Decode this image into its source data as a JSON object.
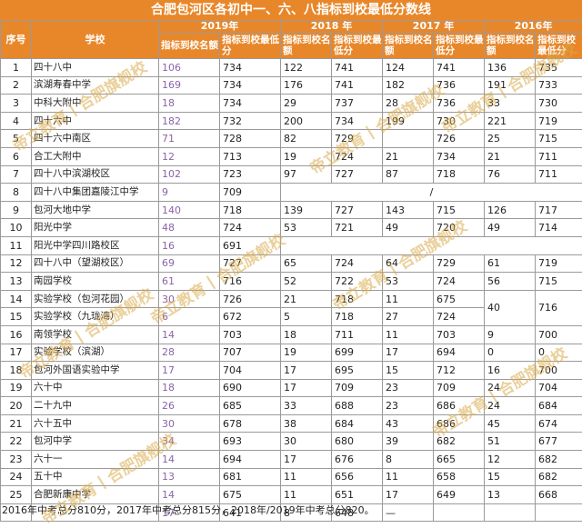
{
  "title": "合肥包河区各初中一、六、八指标到校最低分数线",
  "headers": {
    "no": "序号",
    "school": "学校",
    "years": [
      "2019年",
      "2018 年",
      "2017 年",
      "2016年"
    ],
    "quota": "指标到校名额",
    "min_score_2019": "指标到校最低分",
    "quota_short": "指标到校名额",
    "min_score": "指标到校最低分"
  },
  "rows": [
    {
      "no": "1",
      "school": "四十八中",
      "y2019": [
        "106",
        "734"
      ],
      "y2018": [
        "122",
        "741"
      ],
      "y2017": [
        "124",
        "741"
      ],
      "y2016": [
        "136",
        "735"
      ]
    },
    {
      "no": "2",
      "school": "滨湖寿春中学",
      "y2019": [
        "169",
        "734"
      ],
      "y2018": [
        "176",
        "741"
      ],
      "y2017": [
        "182",
        "736"
      ],
      "y2016": [
        "191",
        "733"
      ]
    },
    {
      "no": "3",
      "school": "中科大附中",
      "y2019": [
        "18",
        "734"
      ],
      "y2018": [
        "29",
        "737"
      ],
      "y2017": [
        "28",
        "736"
      ],
      "y2016": [
        "33",
        "730"
      ]
    },
    {
      "no": "4",
      "school": "四十六中",
      "y2019": [
        "182",
        "732"
      ],
      "y2018": [
        "200",
        "734"
      ],
      "y2017": [
        "199",
        "730"
      ],
      "y2016": [
        "221",
        "719"
      ]
    },
    {
      "no": "5",
      "school": "四十六中南区",
      "y2019": [
        "71",
        "728"
      ],
      "y2018": [
        "82",
        "729"
      ],
      "y2017": [
        "",
        "726"
      ],
      "y2016": [
        "25",
        "715"
      ]
    },
    {
      "no": "6",
      "school": "合工大附中",
      "y2019": [
        "12",
        "713"
      ],
      "y2018": [
        "19",
        "724"
      ],
      "y2017": [
        "21",
        "734"
      ],
      "y2016": [
        "21",
        "711"
      ]
    },
    {
      "no": "7",
      "school": "四十八中滨湖校区",
      "y2019": [
        "102",
        "723"
      ],
      "y2018": [
        "97",
        "727"
      ],
      "y2017": [
        "87",
        "718"
      ],
      "y2016": [
        "76",
        "711"
      ]
    },
    {
      "no": "8",
      "school": "四十八中集团嘉陵江中学",
      "y2019": [
        "9",
        "709"
      ],
      "slash": "/"
    },
    {
      "no": "9",
      "school": "包河大地中学",
      "y2019": [
        "140",
        "718"
      ],
      "y2018": [
        "139",
        "727"
      ],
      "y2017": [
        "143",
        "715"
      ],
      "y2016": [
        "126",
        "717"
      ]
    },
    {
      "no": "10",
      "school": "阳光中学",
      "y2019": [
        "48",
        "724"
      ],
      "y2018": [
        "53",
        "721"
      ],
      "y2017": [
        "49",
        "720"
      ],
      "y2016": [
        "49",
        "714"
      ]
    },
    {
      "no": "11",
      "school": "阳光中学四川路校区",
      "y2019": [
        "16",
        "691"
      ]
    },
    {
      "no": "12",
      "school": "四十八中（望湖校区）",
      "y2019": [
        "69",
        "727"
      ],
      "y2018": [
        "65",
        "724"
      ],
      "y2017": [
        "64",
        "729"
      ],
      "y2016": [
        "61",
        "719"
      ]
    },
    {
      "no": "13",
      "school": "南园学校",
      "y2019": [
        "61",
        "716"
      ],
      "y2018": [
        "52",
        "722"
      ],
      "y2017": [
        "53",
        "724"
      ],
      "y2016": [
        "56",
        "715"
      ]
    },
    {
      "no": "14",
      "school": "实验学校（包河花园）",
      "y2019": [
        "30",
        "726"
      ],
      "y2018": [
        "21",
        "718"
      ],
      "y2017": [
        "11",
        "675"
      ],
      "y2016_merged": [
        "40",
        "716"
      ]
    },
    {
      "no": "15",
      "school": "实验学校（九珑湾）",
      "y2019": [
        "6",
        "672"
      ],
      "y2018": [
        "5",
        "718"
      ],
      "y2017": [
        "27",
        "724"
      ]
    },
    {
      "no": "16",
      "school": "南领学校",
      "y2019": [
        "14",
        "703"
      ],
      "y2018": [
        "18",
        "711"
      ],
      "y2017": [
        "11",
        "703"
      ],
      "y2016": [
        "9",
        "700"
      ]
    },
    {
      "no": "17",
      "school": "实验学校（滨湖）",
      "y2019": [
        "28",
        "707"
      ],
      "y2018": [
        "19",
        "699"
      ],
      "y2017": [
        "17",
        "694"
      ],
      "y2016": [
        "0",
        "0"
      ]
    },
    {
      "no": "18",
      "school": "包河外国语实验中学",
      "y2019": [
        "17",
        "704"
      ],
      "y2018": [
        "17",
        "695"
      ],
      "y2017": [
        "15",
        "712"
      ],
      "y2016": [
        "16",
        "700"
      ]
    },
    {
      "no": "19",
      "school": "六十中",
      "y2019": [
        "18",
        "690"
      ],
      "y2018": [
        "17",
        "709"
      ],
      "y2017": [
        "23",
        "709"
      ],
      "y2016": [
        "24",
        "704"
      ]
    },
    {
      "no": "20",
      "school": "二十九中",
      "y2019": [
        "26",
        "685"
      ],
      "y2018": [
        "33",
        "688"
      ],
      "y2017": [
        "23",
        "686"
      ],
      "y2016": [
        "24",
        "684"
      ]
    },
    {
      "no": "21",
      "school": "六十五中",
      "y2019": [
        "30",
        "678"
      ],
      "y2018": [
        "38",
        "684"
      ],
      "y2017": [
        "43",
        "686"
      ],
      "y2016": [
        "45",
        "674"
      ]
    },
    {
      "no": "22",
      "school": "包河中学",
      "y2019": [
        "34",
        "693"
      ],
      "y2018": [
        "30",
        "680"
      ],
      "y2017": [
        "39",
        "682"
      ],
      "y2016": [
        "51",
        "677"
      ]
    },
    {
      "no": "23",
      "school": "六十一",
      "y2019": [
        "14",
        "694"
      ],
      "y2018": [
        "17",
        "676"
      ],
      "y2017": [
        "8",
        "665"
      ],
      "y2016": [
        "12",
        "682"
      ]
    },
    {
      "no": "24",
      "school": "五十中",
      "y2019": [
        "13",
        "681"
      ],
      "y2018": [
        "11",
        "656"
      ],
      "y2017": [
        "11",
        "658"
      ],
      "y2016": [
        "15",
        "682"
      ]
    },
    {
      "no": "25",
      "school": "合肥新康中学",
      "y2019": [
        "14",
        "675"
      ],
      "y2018": [
        "11",
        "651"
      ],
      "y2017": [
        "17",
        "649"
      ],
      "y2016": [
        "13",
        "668"
      ]
    }
  ],
  "extra_row": {
    "y2019": [
      "17",
      "641"
    ],
    "y2018": [
      "8",
      "648"
    ],
    "y2017_dash": "—"
  },
  "footer": "2016年中考总分810分，2017年中考总分815分，2018年/2019年中考总分820。",
  "watermarks": [
    "帝立教育丨合肥旗舰校",
    "帝立教育丨合肥旗舰校",
    "帝立教育丨合肥旗舰校",
    "帝立教育丨合肥旗舰校",
    "帝立教育丨合肥旗舰校",
    "帝立教育丨合肥旗舰校",
    "帝立教育丨合肥旗舰校",
    "帝立教育丨合肥旗舰校"
  ]
}
